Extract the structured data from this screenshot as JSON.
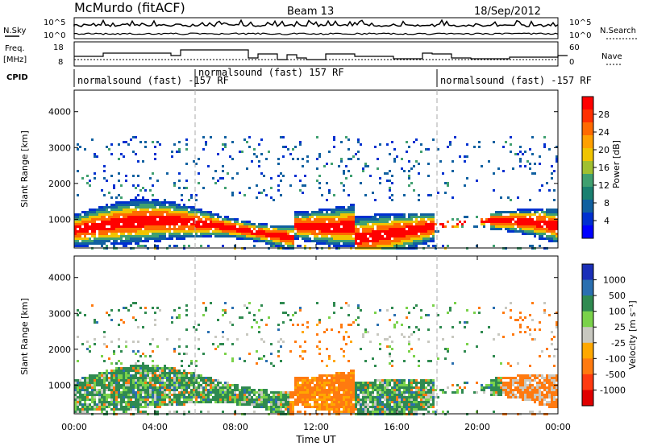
{
  "header": {
    "station": "McMurdo (fitACF)",
    "beam": "Beam 13",
    "date": "18/Sep/2012"
  },
  "strips": {
    "nsky_label": "N.Sky",
    "nsky_ticks": [
      "10^5",
      "10^0"
    ],
    "nsearch_label": "N.Search",
    "nsearch_ticks": [
      "10^5",
      "10^0"
    ],
    "freq_label_1": "Freq.",
    "freq_label_2": "[MHz]",
    "freq_ticks": [
      "18",
      "8"
    ],
    "nave_label": "Nave",
    "nave_ticks": [
      "60",
      "0"
    ],
    "cpid_label": "CPID",
    "cpid_segments": [
      {
        "text": "normalsound (fast) -157 RF",
        "start_hour": 0
      },
      {
        "text": "normalsound (fast) 157 RF",
        "start_hour": 6
      },
      {
        "text": "normalsound (fast) -157 RF",
        "start_hour": 18
      }
    ]
  },
  "chart_data": [
    {
      "type": "heatmap",
      "name": "power",
      "ylabel": "Slant Range [km]",
      "yticks": [
        "1000",
        "2000",
        "3000",
        "4000"
      ],
      "ylim": [
        200,
        4600
      ],
      "colorbar_label": "Power [dB]",
      "colorbar_ticks": [
        "28",
        "24",
        "20",
        "16",
        "12",
        "8",
        "4"
      ],
      "colorbar_colors": [
        "#ff0000",
        "#ff3000",
        "#ff6a00",
        "#ffa000",
        "#f0c400",
        "#a0c030",
        "#40a070",
        "#1a8070",
        "#1060a0",
        "#0030d0",
        "#0000ff"
      ]
    },
    {
      "type": "heatmap",
      "name": "velocity",
      "ylabel": "Slant Range [km]",
      "yticks": [
        "1000",
        "2000",
        "3000",
        "4000"
      ],
      "ylim": [
        200,
        4600
      ],
      "xlabel": "Time UT",
      "xticks": [
        "00:00",
        "04:00",
        "08:00",
        "12:00",
        "16:00",
        "20:00",
        "00:00"
      ],
      "colorbar_label": "Velocity [m s⁻¹]",
      "colorbar_ticks": [
        "1000",
        "500",
        "100",
        "25",
        "-25",
        "-100",
        "-500",
        "-1000"
      ],
      "colorbar_colors": [
        "#1a2fb8",
        "#2a6fb0",
        "#2f8a50",
        "#7ad24a",
        "#c8c8c0",
        "#ffa800",
        "#ff7a10",
        "#ff3a10",
        "#e00000"
      ]
    }
  ]
}
